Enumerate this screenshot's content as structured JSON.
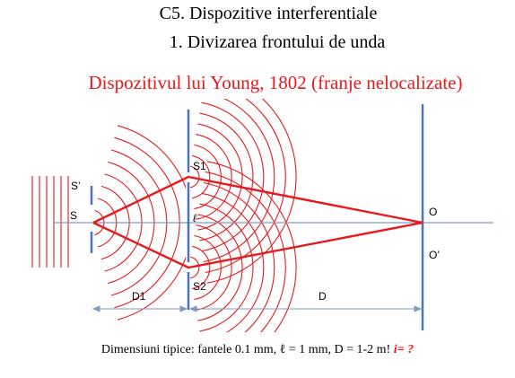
{
  "header": {
    "title": "C5. Dispozitive interferentiale",
    "subtitle": "1. Divizarea frontului de unda",
    "heading": "Dispozitivul lui Young, 1802 (franje nelocalizate)"
  },
  "diagram": {
    "labels": {
      "s_prime": "S’",
      "s": "S",
      "s1": "S1",
      "s2": "S2",
      "o": "O",
      "o_prime": "O’",
      "d1": "D1",
      "d": "D",
      "ell": "ℓ"
    },
    "colors": {
      "wave": "#e8191c",
      "ray": "#e8191c",
      "screen": "#4a73b8",
      "axis": "#7f9bc6"
    }
  },
  "footer": {
    "prefix": "Dimensiuni tipice:  fantele 0.1 mm, ℓ = 1 mm, D = 1-2 m!",
    "question": "i= ?"
  }
}
